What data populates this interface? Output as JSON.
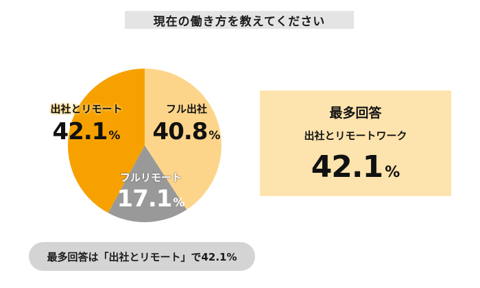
{
  "chart_data": {
    "type": "pie",
    "title": "現在の働き方を教えてください",
    "unit": "%",
    "slices": [
      {
        "label": "フル出社",
        "value": 40.8,
        "color": "#fdd58a"
      },
      {
        "label": "フルリモート",
        "value": 17.1,
        "color": "#999999"
      },
      {
        "label": "出社とリモート",
        "value": 42.1,
        "color": "#f7a100"
      }
    ]
  },
  "summary": {
    "heading": "最多回答",
    "answer": "出社とリモートワーク",
    "value": "42.1",
    "unit": "%",
    "background": "#fde3ad"
  },
  "footer_note": "最多回答は「出社とリモート」で42.1%"
}
